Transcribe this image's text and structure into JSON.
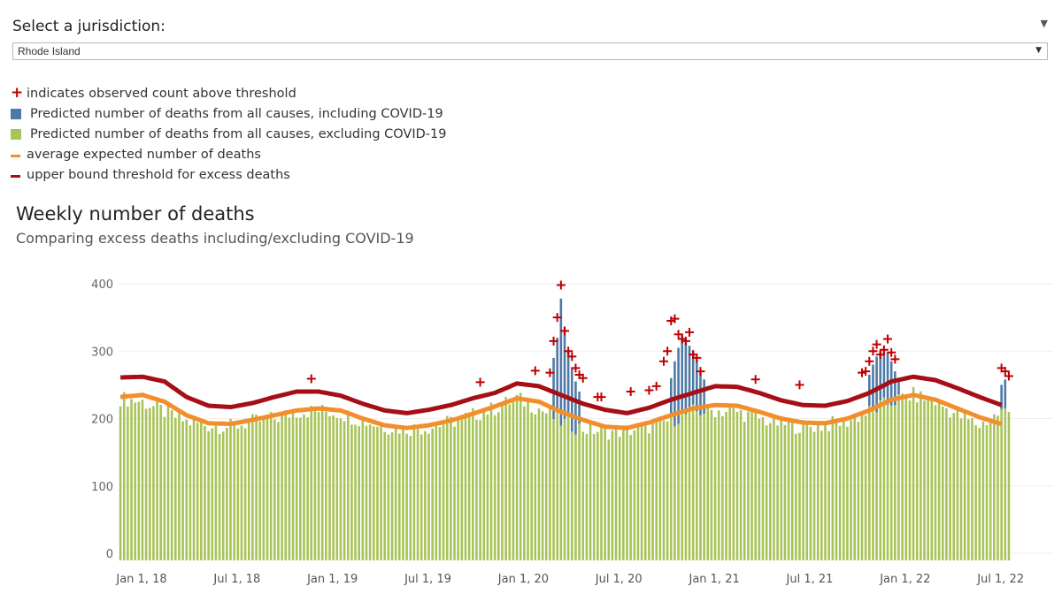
{
  "selector": {
    "label": "Select a jurisdiction:",
    "value": "Rhode Island"
  },
  "legend": [
    {
      "symbol": "plus",
      "color": "#c00000",
      "text": "indicates observed count above threshold"
    },
    {
      "symbol": "square",
      "color": "#4e79a7",
      "text": "Predicted number of deaths from all causes, including COVID-19"
    },
    {
      "symbol": "square",
      "color": "#a8c356",
      "text": "Predicted number of deaths from all causes, excluding COVID-19"
    },
    {
      "symbol": "line",
      "color": "#f28e2b",
      "text": "average expected number of deaths"
    },
    {
      "symbol": "line",
      "color": "#a50f15",
      "text": "upper bound threshold for excess deaths"
    }
  ],
  "chart_data": {
    "type": "bar",
    "title": "Weekly number of deaths",
    "subtitle": "Comparing excess deaths including/excluding COVID-19",
    "ylim": [
      0,
      400
    ],
    "yticks": [
      0,
      100,
      200,
      300,
      400
    ],
    "xtick_labels": [
      "Jan 1, 18",
      "Jul 1, 18",
      "Jan 1, 19",
      "Jul 1, 19",
      "Jan 1, 20",
      "Jul 1, 20",
      "Jan 1, 21",
      "Jul 1, 21",
      "Jan 1, 22",
      "Jul 1, 22"
    ],
    "xtick_weeks": [
      0,
      26,
      52,
      78,
      104,
      130,
      156,
      182,
      208,
      234
    ],
    "colors": {
      "including": "#4e79a7",
      "excluding": "#a8c356",
      "expected": "#f28e2b",
      "threshold": "#a50f15",
      "marker": "#c00000"
    },
    "series_anchors_week": [
      0,
      6,
      12,
      18,
      24,
      30,
      36,
      42,
      48,
      54,
      60,
      66,
      72,
      78,
      84,
      90,
      96,
      102,
      108,
      114,
      120,
      126,
      132,
      138,
      144,
      150,
      156,
      162,
      168,
      174,
      180,
      186,
      192,
      198,
      204,
      210,
      216,
      222,
      228,
      234,
      240
    ],
    "expected_values": [
      232,
      235,
      225,
      205,
      193,
      192,
      198,
      205,
      212,
      215,
      212,
      200,
      190,
      186,
      190,
      197,
      207,
      218,
      230,
      225,
      210,
      198,
      188,
      186,
      194,
      205,
      215,
      220,
      219,
      210,
      200,
      194,
      193,
      200,
      212,
      228,
      235,
      228,
      215,
      202,
      192
    ],
    "threshold_values": [
      261,
      262,
      255,
      232,
      219,
      217,
      223,
      232,
      240,
      240,
      234,
      222,
      212,
      208,
      213,
      220,
      230,
      238,
      252,
      248,
      235,
      222,
      213,
      208,
      216,
      228,
      238,
      248,
      247,
      238,
      227,
      220,
      219,
      226,
      238,
      255,
      262,
      257,
      245,
      232,
      220
    ],
    "excluding_anchor_values": [
      230,
      225,
      210,
      195,
      190,
      188,
      195,
      200,
      210,
      212,
      208,
      197,
      188,
      185,
      187,
      195,
      205,
      215,
      230,
      215,
      195,
      185,
      180,
      182,
      188,
      198,
      210,
      212,
      210,
      200,
      192,
      188,
      190,
      196,
      210,
      225,
      235,
      225,
      205,
      190,
      210
    ],
    "including_spikes": [
      {
        "week": 118,
        "value": 290
      },
      {
        "week": 119,
        "value": 320
      },
      {
        "week": 120,
        "value": 378
      },
      {
        "week": 121,
        "value": 335
      },
      {
        "week": 122,
        "value": 300
      },
      {
        "week": 123,
        "value": 275
      },
      {
        "week": 124,
        "value": 255
      },
      {
        "week": 125,
        "value": 240
      },
      {
        "week": 150,
        "value": 260
      },
      {
        "week": 151,
        "value": 285
      },
      {
        "week": 152,
        "value": 305
      },
      {
        "week": 153,
        "value": 325
      },
      {
        "week": 154,
        "value": 318
      },
      {
        "week": 155,
        "value": 308
      },
      {
        "week": 156,
        "value": 300
      },
      {
        "week": 157,
        "value": 288
      },
      {
        "week": 158,
        "value": 270
      },
      {
        "week": 159,
        "value": 258
      },
      {
        "week": 204,
        "value": 265
      },
      {
        "week": 205,
        "value": 280
      },
      {
        "week": 206,
        "value": 292
      },
      {
        "week": 207,
        "value": 300
      },
      {
        "week": 208,
        "value": 305
      },
      {
        "week": 209,
        "value": 298
      },
      {
        "week": 210,
        "value": 285
      },
      {
        "week": 211,
        "value": 270
      },
      {
        "week": 212,
        "value": 255
      },
      {
        "week": 240,
        "value": 250
      },
      {
        "week": 241,
        "value": 258
      }
    ],
    "markers": [
      {
        "week": 52,
        "value": 259
      },
      {
        "week": 98,
        "value": 254
      },
      {
        "week": 113,
        "value": 271
      },
      {
        "week": 117,
        "value": 268
      },
      {
        "week": 118,
        "value": 315
      },
      {
        "week": 119,
        "value": 350
      },
      {
        "week": 120,
        "value": 398
      },
      {
        "week": 121,
        "value": 330
      },
      {
        "week": 122,
        "value": 300
      },
      {
        "week": 123,
        "value": 292
      },
      {
        "week": 124,
        "value": 275
      },
      {
        "week": 125,
        "value": 265
      },
      {
        "week": 126,
        "value": 260
      },
      {
        "week": 130,
        "value": 232
      },
      {
        "week": 131,
        "value": 232
      },
      {
        "week": 139,
        "value": 240
      },
      {
        "week": 144,
        "value": 242
      },
      {
        "week": 146,
        "value": 248
      },
      {
        "week": 148,
        "value": 285
      },
      {
        "week": 149,
        "value": 300
      },
      {
        "week": 150,
        "value": 345
      },
      {
        "week": 151,
        "value": 348
      },
      {
        "week": 152,
        "value": 325
      },
      {
        "week": 153,
        "value": 318
      },
      {
        "week": 154,
        "value": 315
      },
      {
        "week": 155,
        "value": 328
      },
      {
        "week": 156,
        "value": 295
      },
      {
        "week": 157,
        "value": 290
      },
      {
        "week": 158,
        "value": 270
      },
      {
        "week": 173,
        "value": 258
      },
      {
        "week": 185,
        "value": 250
      },
      {
        "week": 202,
        "value": 268
      },
      {
        "week": 203,
        "value": 270
      },
      {
        "week": 204,
        "value": 285
      },
      {
        "week": 205,
        "value": 300
      },
      {
        "week": 206,
        "value": 310
      },
      {
        "week": 207,
        "value": 295
      },
      {
        "week": 208,
        "value": 302
      },
      {
        "week": 209,
        "value": 318
      },
      {
        "week": 210,
        "value": 298
      },
      {
        "week": 211,
        "value": 288
      },
      {
        "week": 240,
        "value": 275
      },
      {
        "week": 241,
        "value": 270
      },
      {
        "week": 242,
        "value": 263
      }
    ]
  }
}
